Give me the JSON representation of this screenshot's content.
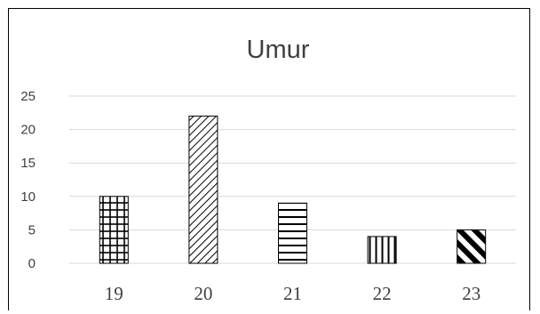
{
  "chart_data": {
    "type": "bar",
    "title": "Umur",
    "xlabel": "",
    "ylabel": "",
    "categories": [
      "19",
      "20",
      "21",
      "22",
      "23"
    ],
    "values": [
      10,
      22,
      9,
      4,
      5
    ],
    "ylim": [
      0,
      25
    ],
    "yticks": [
      0,
      5,
      10,
      15,
      20,
      25
    ],
    "grid": true,
    "legend": "none",
    "patterns": [
      "grid",
      "diagonal-up",
      "horizontal-lines",
      "vertical-lines",
      "diagonal-down-bold"
    ],
    "colors": {
      "bar_fill": "#ffffff",
      "bar_stroke": "#000000",
      "gridline": "#d9d9d9",
      "axis_text": "#404040"
    }
  }
}
